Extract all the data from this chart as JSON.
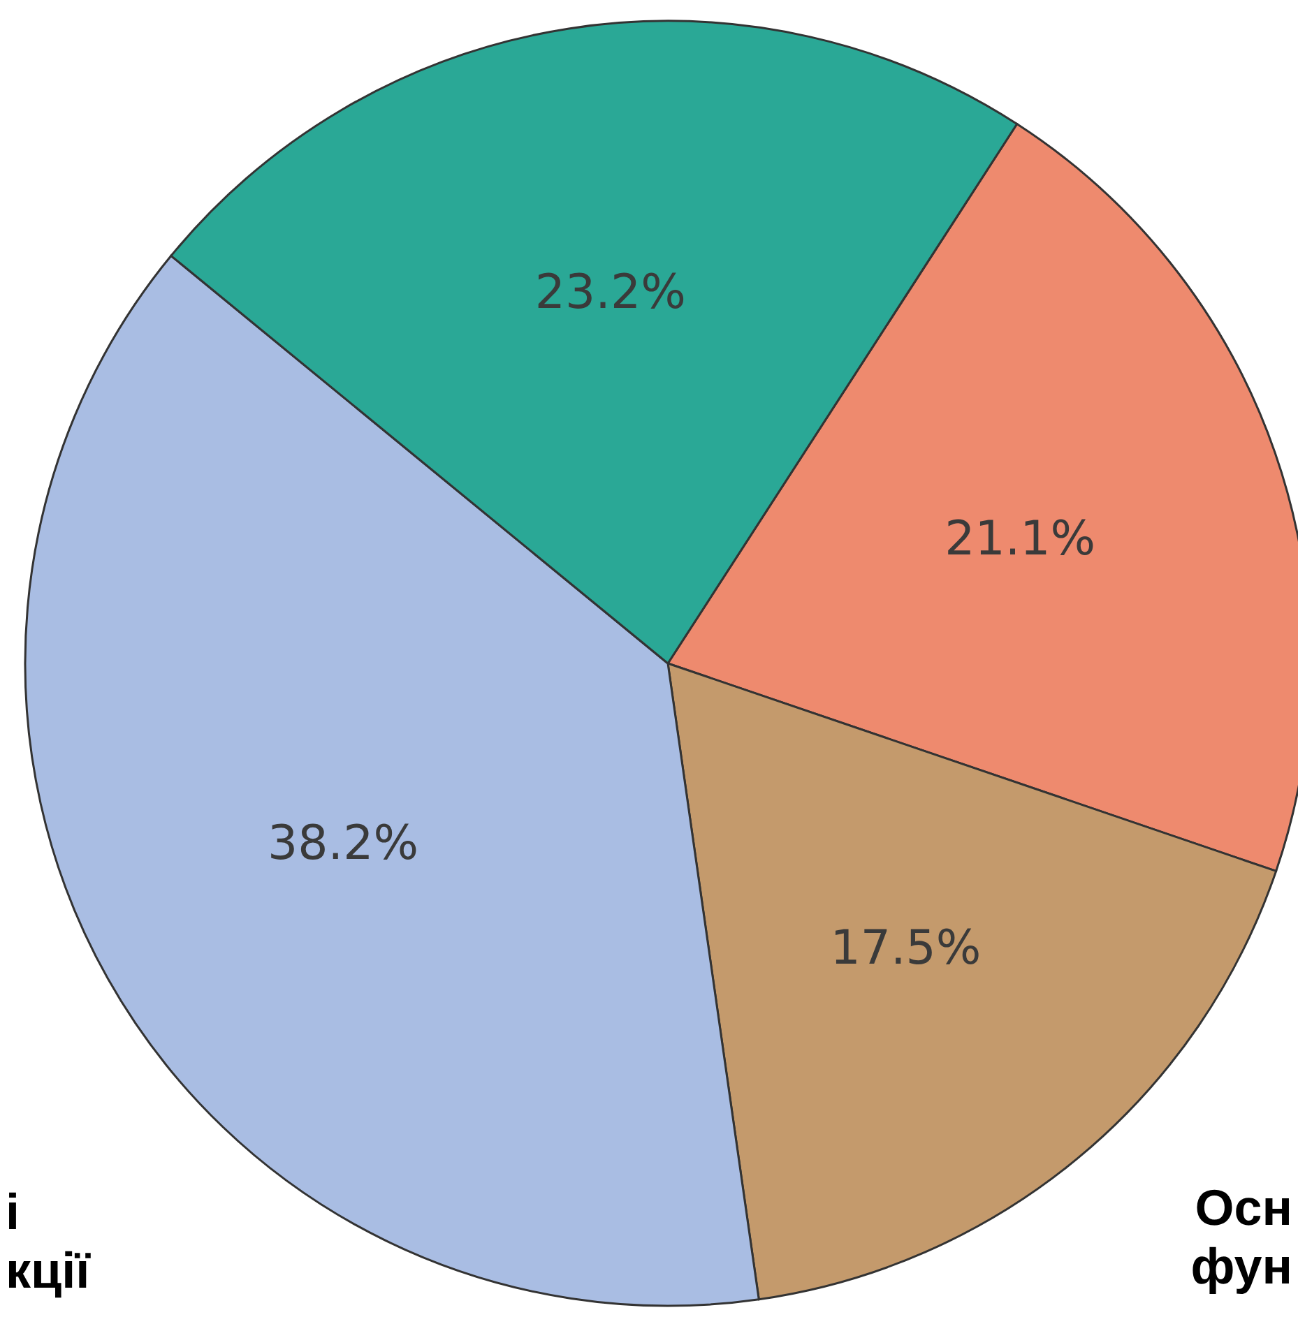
{
  "chart_data": {
    "type": "pie",
    "categories": [
      null,
      null,
      null,
      null
    ],
    "values": [
      21.1,
      17.5,
      38.2,
      23.2
    ],
    "colors": [
      "#ee8a6e",
      "#c49a6c",
      "#a9bde3",
      "#2aa896"
    ],
    "value_labels": [
      "21.1%",
      "17.5%",
      "38.2%",
      "23.2%"
    ],
    "annotations": [
      "і\nкції",
      "Осн\nфун"
    ]
  }
}
